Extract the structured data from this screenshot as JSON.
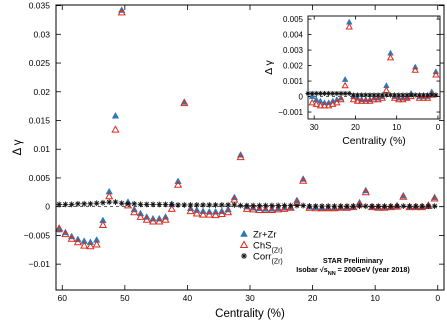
{
  "chart_data": [
    {
      "type": "scatter",
      "role": "main",
      "xlabel": "Centrality (%)",
      "ylabel": "Δ γ",
      "xlim": [
        61,
        -1
      ],
      "ylim": [
        -0.0145,
        0.0351
      ],
      "x_reversed": true,
      "grid": false,
      "xticks": [
        60,
        50,
        40,
        30,
        20,
        10,
        0
      ],
      "yticks": [
        -0.01,
        -0.005,
        0,
        0.005,
        0.01,
        0.015,
        0.02,
        0.025,
        0.03,
        0.035
      ],
      "ytick_labels": [
        "−0.01",
        "−0.005",
        "0",
        "0.005",
        "0.01",
        "0.015",
        "0.02",
        "0.025",
        "0.03",
        "0.035"
      ],
      "annotations": [
        {
          "id": "star",
          "text": "STAR Preliminary"
        },
        {
          "id": "isobar",
          "text": "Isobar √sNN = 200GeV (year 2018)",
          "parts": [
            "Isobar √s",
            "NN",
            " = 200GeV (year 2018)"
          ]
        }
      ],
      "legend_placement": "bottom-center",
      "series": [
        {
          "name": "Zr+Zr",
          "sub": "",
          "marker": "filled-triangle",
          "color": "#2e78b6",
          "points": [
            [
              60.5,
              -0.004
            ],
            [
              59.5,
              -0.0045
            ],
            [
              58.5,
              -0.0052
            ],
            [
              57.5,
              -0.0057
            ],
            [
              56.5,
              -0.006
            ],
            [
              55.5,
              -0.0062
            ],
            [
              54.5,
              -0.0058
            ],
            [
              53.5,
              -0.0024
            ],
            [
              52.5,
              0.0026
            ],
            [
              51.5,
              0.0158
            ],
            [
              50.5,
              0.0342
            ],
            [
              49.5,
              0.0008
            ],
            [
              48.5,
              -0.0005
            ],
            [
              47.5,
              -0.0012
            ],
            [
              46.5,
              -0.0018
            ],
            [
              45.5,
              -0.0021
            ],
            [
              44.5,
              -0.0021
            ],
            [
              43.5,
              -0.0018
            ],
            [
              42.5,
              0.0004
            ],
            [
              41.5,
              0.0044
            ],
            [
              40.5,
              0.0182
            ],
            [
              39.5,
              -0.0003
            ],
            [
              38.5,
              -0.0006
            ],
            [
              37.5,
              -0.0008
            ],
            [
              36.5,
              -0.0009
            ],
            [
              35.5,
              -0.0009
            ],
            [
              34.5,
              -0.0008
            ],
            [
              33.5,
              -0.0005
            ],
            [
              32.5,
              0.0016
            ],
            [
              31.5,
              0.009
            ],
            [
              30.5,
              0
            ],
            [
              29.5,
              -0.0002
            ],
            [
              28.5,
              -0.0003
            ],
            [
              27.5,
              -0.0004
            ],
            [
              26.5,
              -0.0004
            ],
            [
              25.5,
              -0.0003
            ],
            [
              24.5,
              -0.0002
            ],
            [
              23.5,
              -0.0001
            ],
            [
              22.5,
              0.0011
            ],
            [
              21.5,
              0.0048
            ],
            [
              20.5,
              0
            ],
            [
              19.5,
              -0.0001
            ],
            [
              18.5,
              -0.0002
            ],
            [
              17.5,
              -0.0002
            ],
            [
              16.5,
              -0.0002
            ],
            [
              15.5,
              -0.0001
            ],
            [
              14.5,
              -0.0001
            ],
            [
              13.5,
              0
            ],
            [
              12.5,
              0.0007
            ],
            [
              11.5,
              0.0028
            ],
            [
              10.5,
              0
            ],
            [
              9.5,
              -0.0001
            ],
            [
              8.5,
              -0.0001
            ],
            [
              7.5,
              -0.0001
            ],
            [
              6.5,
              0.0002
            ],
            [
              5.5,
              0.0019
            ],
            [
              4.5,
              0
            ],
            [
              3.5,
              0
            ],
            [
              2.5,
              0
            ],
            [
              1.5,
              0.0003
            ],
            [
              0.5,
              0.0016
            ]
          ]
        },
        {
          "name": "ChS",
          "sub": "(Zr)",
          "marker": "open-triangle",
          "color": "#e02c1e",
          "points": [
            [
              60.5,
              -0.0038
            ],
            [
              59.5,
              -0.0048
            ],
            [
              58.5,
              -0.0056
            ],
            [
              57.5,
              -0.0062
            ],
            [
              56.5,
              -0.0068
            ],
            [
              55.5,
              -0.0069
            ],
            [
              54.5,
              -0.0066
            ],
            [
              53.5,
              -0.0032
            ],
            [
              52.5,
              0.0018
            ],
            [
              51.5,
              0.0134
            ],
            [
              50.5,
              0.0338
            ],
            [
              49.5,
              0.0002
            ],
            [
              48.5,
              -0.001
            ],
            [
              47.5,
              -0.0018
            ],
            [
              46.5,
              -0.0023
            ],
            [
              45.5,
              -0.0026
            ],
            [
              44.5,
              -0.0026
            ],
            [
              43.5,
              -0.0023
            ],
            [
              42.5,
              -0.0004
            ],
            [
              41.5,
              0.0038
            ],
            [
              40.5,
              0.018
            ],
            [
              39.5,
              -0.0008
            ],
            [
              38.5,
              -0.0012
            ],
            [
              37.5,
              -0.0014
            ],
            [
              36.5,
              -0.0014
            ],
            [
              35.5,
              -0.0015
            ],
            [
              34.5,
              -0.0013
            ],
            [
              33.5,
              -0.001
            ],
            [
              32.5,
              0.0012
            ],
            [
              31.5,
              0.0086
            ],
            [
              30.5,
              -0.0004
            ],
            [
              29.5,
              -0.0005
            ],
            [
              28.5,
              -0.0006
            ],
            [
              27.5,
              -0.0006
            ],
            [
              26.5,
              -0.0006
            ],
            [
              25.5,
              -0.0005
            ],
            [
              24.5,
              -0.0004
            ],
            [
              23.5,
              -0.0002
            ],
            [
              22.5,
              0.0007
            ],
            [
              21.5,
              0.0045
            ],
            [
              20.5,
              -0.0002
            ],
            [
              19.5,
              -0.0003
            ],
            [
              18.5,
              -0.0003
            ],
            [
              17.5,
              -0.0003
            ],
            [
              16.5,
              -0.0003
            ],
            [
              15.5,
              -0.0002
            ],
            [
              14.5,
              -0.0002
            ],
            [
              13.5,
              -0.0001
            ],
            [
              12.5,
              0.0004
            ],
            [
              11.5,
              0.0025
            ],
            [
              10.5,
              -0.0001
            ],
            [
              9.5,
              -0.0002
            ],
            [
              8.5,
              -0.0002
            ],
            [
              7.5,
              -0.0001
            ],
            [
              6.5,
              0
            ],
            [
              5.5,
              0.0017
            ],
            [
              4.5,
              -0.0001
            ],
            [
              3.5,
              -0.0001
            ],
            [
              2.5,
              -0.0001
            ],
            [
              1.5,
              0.0001
            ],
            [
              0.5,
              0.0014
            ]
          ]
        },
        {
          "name": "Corr",
          "sub": "(Zr)",
          "marker": "asterisk",
          "color": "#111111",
          "points": [
            [
              60.5,
              0.0004
            ],
            [
              59.5,
              0.0004
            ],
            [
              58.5,
              0.0004
            ],
            [
              57.5,
              0.0005
            ],
            [
              56.5,
              0.0005
            ],
            [
              55.5,
              0.0005
            ],
            [
              54.5,
              0.0006
            ],
            [
              53.5,
              0.0007
            ],
            [
              52.5,
              0.0008
            ],
            [
              51.5,
              0.0008
            ],
            [
              50.5,
              0.0006
            ],
            [
              49.5,
              0.0005
            ],
            [
              48.5,
              0.0005
            ],
            [
              47.5,
              0.0004
            ],
            [
              46.5,
              0.0004
            ],
            [
              45.5,
              0.0004
            ],
            [
              44.5,
              0.0004
            ],
            [
              43.5,
              0.0004
            ],
            [
              42.5,
              0.0004
            ],
            [
              41.5,
              0.0003
            ],
            [
              40.5,
              0.0003
            ],
            [
              39.5,
              0.0003
            ],
            [
              38.5,
              0.0003
            ],
            [
              37.5,
              0.0003
            ],
            [
              36.5,
              0.0003
            ],
            [
              35.5,
              0.0003
            ],
            [
              34.5,
              0.0003
            ],
            [
              33.5,
              0.0003
            ],
            [
              32.5,
              0.0003
            ],
            [
              31.5,
              0.0002
            ],
            [
              30.5,
              0.0002
            ],
            [
              29.5,
              0.0002
            ],
            [
              28.5,
              0.0002
            ],
            [
              27.5,
              0.0002
            ],
            [
              26.5,
              0.0002
            ],
            [
              25.5,
              0.0002
            ],
            [
              24.5,
              0.0002
            ],
            [
              23.5,
              0.0002
            ],
            [
              22.5,
              0.0002
            ],
            [
              21.5,
              0.0002
            ],
            [
              20.5,
              0.0001
            ],
            [
              19.5,
              0.0001
            ],
            [
              18.5,
              0.0001
            ],
            [
              17.5,
              0.0001
            ],
            [
              16.5,
              0.0001
            ],
            [
              15.5,
              0.0001
            ],
            [
              14.5,
              0.0001
            ],
            [
              13.5,
              0.0001
            ],
            [
              12.5,
              0.0001
            ],
            [
              11.5,
              0.0001
            ],
            [
              10.5,
              0.0001
            ],
            [
              9.5,
              0.0001
            ],
            [
              8.5,
              0.0001
            ],
            [
              7.5,
              0.0001
            ],
            [
              6.5,
              0.0001
            ],
            [
              5.5,
              0.0001
            ],
            [
              4.5,
              0.0001
            ],
            [
              3.5,
              0.0001
            ],
            [
              2.5,
              0.0001
            ],
            [
              1.5,
              0.0001
            ],
            [
              0.5,
              0.0001
            ]
          ]
        }
      ]
    },
    {
      "type": "scatter",
      "role": "inset",
      "placement": "top-right",
      "xlabel": "Centrality (%)",
      "ylabel": "Δ γ",
      "xlim": [
        31.5,
        -0.5
      ],
      "ylim": [
        -0.00145,
        0.0052
      ],
      "x_reversed": true,
      "grid": false,
      "xticks": [
        30,
        20,
        10,
        0
      ],
      "yticks": [
        -0.001,
        0,
        0.001,
        0.002,
        0.003,
        0.004,
        0.005
      ],
      "ytick_labels": [
        "−0.001",
        "0",
        "0.001",
        "0.002",
        "0.003",
        "0.004",
        "0.005"
      ],
      "series_ref": "main"
    }
  ]
}
